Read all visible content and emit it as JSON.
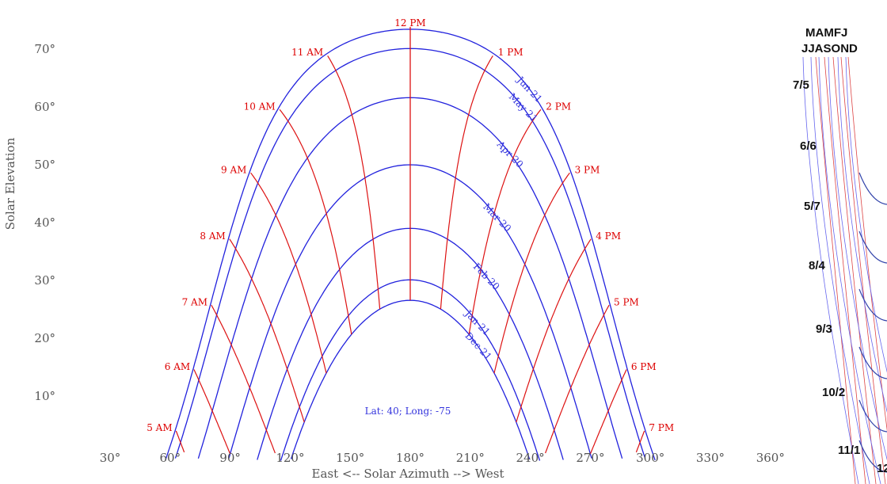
{
  "chart_data": {
    "type": "line",
    "title": "",
    "xlabel": "East <-- Solar Azimuth --> West",
    "ylabel": "Solar Elevation",
    "x_ticks": [
      "30°",
      "60°",
      "90°",
      "120°",
      "150°",
      "180°",
      "210°",
      "240°",
      "270°",
      "300°",
      "330°",
      "360°"
    ],
    "x_tick_values": [
      30,
      60,
      90,
      120,
      150,
      180,
      210,
      240,
      270,
      300,
      330,
      360
    ],
    "y_ticks": [
      "10°",
      "20°",
      "30°",
      "40°",
      "50°",
      "60°",
      "70°"
    ],
    "y_tick_values": [
      10,
      20,
      30,
      40,
      50,
      60,
      70
    ],
    "xlim": [
      25,
      365
    ],
    "ylim": [
      -2,
      76
    ],
    "grid": false,
    "latitude": 40,
    "longitude": -75,
    "annotation": "Lat: 40; Long: -75",
    "date_color": "#2222dd",
    "hour_color": "#dd1111",
    "date_series": [
      {
        "name": "Jun 21",
        "declination": 23.44,
        "label_azimuth": 232
      },
      {
        "name": "May 21",
        "declination": 20.1,
        "label_azimuth": 228
      },
      {
        "name": "Apr 20",
        "declination": 11.6,
        "label_azimuth": 222
      },
      {
        "name": "Mar 20",
        "declination": 0,
        "label_azimuth": 215
      },
      {
        "name": "Feb 20",
        "declination": -11.0,
        "label_azimuth": 210
      },
      {
        "name": "Jan 21",
        "declination": -19.9,
        "label_azimuth": 206
      },
      {
        "name": "Dec 21",
        "declination": -23.44,
        "label_azimuth": 206
      }
    ],
    "hour_series": [
      {
        "name": "5 AM",
        "hour_angle": -105
      },
      {
        "name": "6 AM",
        "hour_angle": -90
      },
      {
        "name": "7 AM",
        "hour_angle": -75
      },
      {
        "name": "8 AM",
        "hour_angle": -60
      },
      {
        "name": "9 AM",
        "hour_angle": -45
      },
      {
        "name": "10 AM",
        "hour_angle": -30
      },
      {
        "name": "11 AM",
        "hour_angle": -15
      },
      {
        "name": "12 PM",
        "hour_angle": 0
      },
      {
        "name": "1 PM",
        "hour_angle": 15
      },
      {
        "name": "2 PM",
        "hour_angle": 30
      },
      {
        "name": "3 PM",
        "hour_angle": 45
      },
      {
        "name": "4 PM",
        "hour_angle": 60
      },
      {
        "name": "5 PM",
        "hour_angle": 75
      },
      {
        "name": "6 PM",
        "hour_angle": 90
      },
      {
        "name": "7 PM",
        "hour_angle": 105
      }
    ]
  },
  "side_panel": {
    "month_header_top": "MAMFJ",
    "month_header_bottom": "JJASOND",
    "date_labels": [
      "7/5",
      "6/6",
      "5/7",
      "8/4",
      "9/3",
      "10/2",
      "11/1",
      "12"
    ]
  }
}
